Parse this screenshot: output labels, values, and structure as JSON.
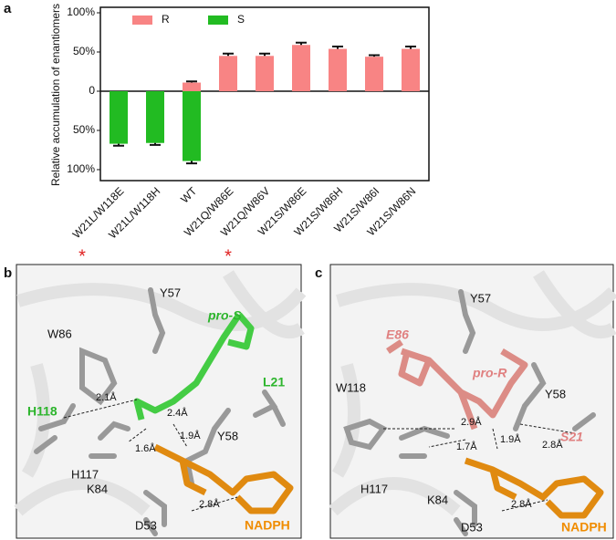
{
  "chart_data": {
    "type": "bar",
    "panel": "a",
    "y_label": "Relative accumulation of enantiomers",
    "categories": [
      "W21L/W118E",
      "W21L/W118H",
      "WT",
      "W21Q/W86E",
      "W21Q/W86V",
      "W21S/W86E",
      "W21S/W86H",
      "W21S/W86I",
      "W21S/W86N"
    ],
    "series": [
      {
        "name": "R",
        "color": "#f88484",
        "values": [
          null,
          null,
          11,
          45,
          45,
          59,
          54,
          44,
          54
        ],
        "errors": [
          null,
          null,
          1.5,
          3,
          3,
          3,
          3,
          2,
          3
        ]
      },
      {
        "name": "S",
        "color": "#22bb22",
        "values": [
          -67,
          -66,
          -89,
          null,
          null,
          null,
          null,
          null,
          null
        ],
        "errors": [
          2.5,
          2.5,
          3,
          null,
          null,
          null,
          null,
          null,
          null
        ]
      }
    ],
    "ylim": [
      -114,
      107
    ],
    "yticks": [
      {
        "value": -100,
        "label": "100%"
      },
      {
        "value": -50,
        "label": "50%"
      },
      0,
      {
        "value": 50,
        "label": "50%"
      },
      {
        "value": 100,
        "label": "100%"
      }
    ],
    "legend": "upper left",
    "annotations": [
      {
        "text": "*",
        "category": 0
      },
      {
        "text": "*",
        "category": 4
      }
    ]
  },
  "panel_b": {
    "panel": "b",
    "labels": [
      "Y57",
      "pro-S",
      "W86",
      "L21",
      "2.1Å",
      "H118",
      "2.4Å",
      "1.9Å",
      "Y58",
      "1.6Å",
      "H117",
      "K84",
      "2.8Å",
      "D53",
      "NADPH"
    ]
  },
  "panel_c": {
    "panel": "c",
    "labels": [
      "Y57",
      "E86",
      "pro-R",
      "W118",
      "Y58",
      "2.9Å",
      "1.7Å",
      "1.9Å",
      "2.8Å",
      "S21",
      "H117",
      "K84",
      "2.8Å",
      "D53",
      "NADPH"
    ]
  }
}
